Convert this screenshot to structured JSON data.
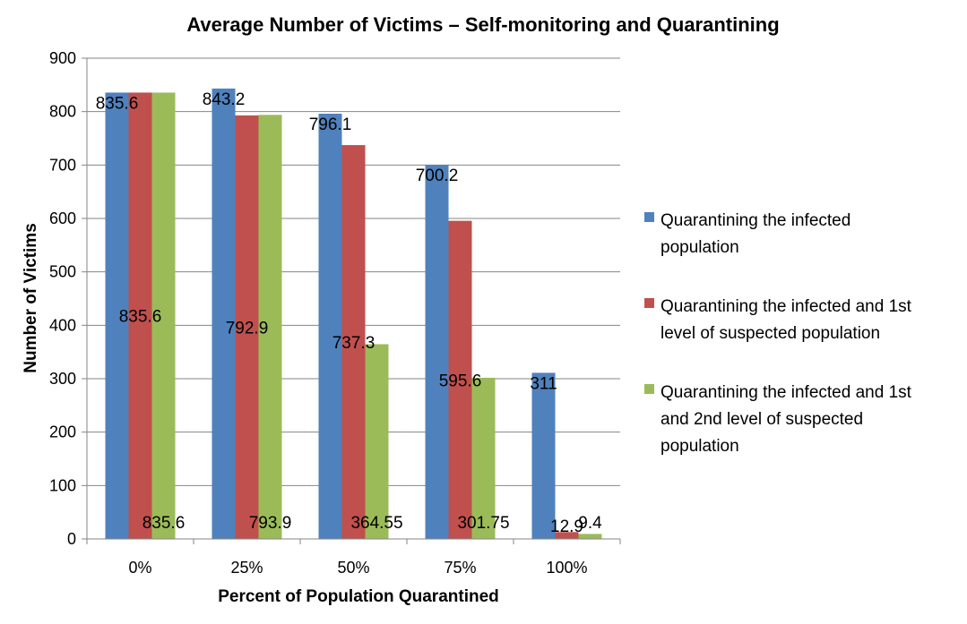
{
  "chart_data": {
    "type": "bar",
    "title": "Average Number of Victims – Self-monitoring and Quarantining",
    "xlabel": "Percent of Population Quarantined",
    "ylabel": "Number of Victims",
    "ylim": [
      0,
      900
    ],
    "yticks": [
      "0",
      "100",
      "200",
      "300",
      "400",
      "500",
      "600",
      "700",
      "800",
      "900"
    ],
    "categories": [
      "0%",
      "25%",
      "50%",
      "75%",
      "100%"
    ],
    "grid": true,
    "legend_position": "right",
    "series": [
      {
        "name": "Quarantining the infected population",
        "legend_lines": [
          "Quarantining the infected",
          "population"
        ],
        "color": "#4F81BD",
        "values": [
          835.6,
          843.2,
          796.1,
          700.2,
          311
        ],
        "labels": [
          "835.6",
          "843.2",
          "796.1",
          "700.2",
          "311"
        ]
      },
      {
        "name": "Quarantining the infected and 1st level of suspected population",
        "legend_lines": [
          "Quarantining the infected and 1st",
          "level of suspected population"
        ],
        "color": "#C0504D",
        "values": [
          835.6,
          792.9,
          737.3,
          595.6,
          12.9
        ],
        "labels": [
          "835.6",
          "792.9",
          "737.3",
          "595.6",
          "12.9"
        ]
      },
      {
        "name": "Quarantining the infected and 1st and 2nd level of suspected population",
        "legend_lines": [
          "Quarantining the infected and 1st",
          "and 2nd level of suspected",
          "population"
        ],
        "color": "#9BBB59",
        "values": [
          835.6,
          793.9,
          364.55,
          301.75,
          9.4
        ],
        "labels": [
          "835.6",
          "793.9",
          "364.55",
          "301.75",
          "9.4"
        ]
      }
    ]
  }
}
